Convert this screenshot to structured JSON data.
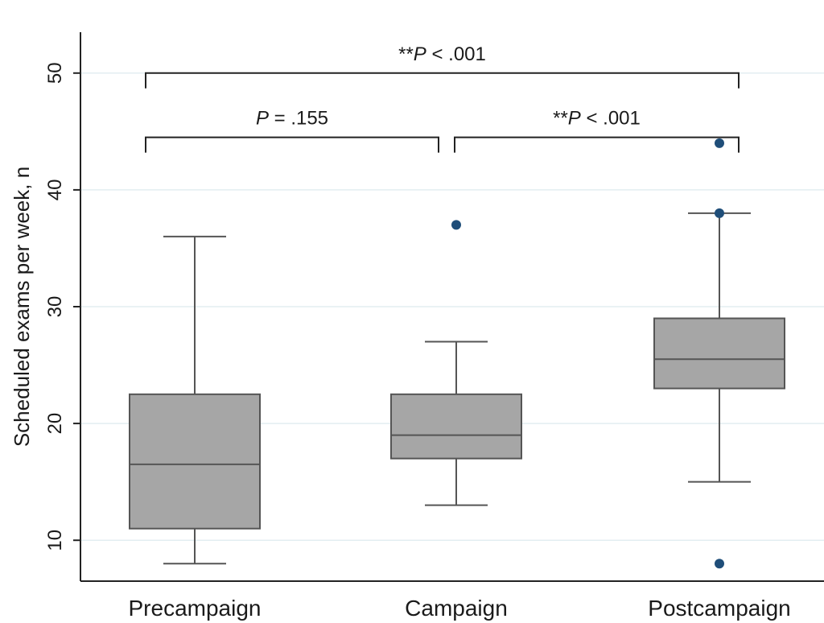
{
  "chart_data": {
    "type": "boxplot",
    "ylabel": "Scheduled exams per week, n",
    "xlabel": "",
    "ylim": [
      6.5,
      53.5
    ],
    "yticks": [
      10,
      20,
      30,
      40,
      50
    ],
    "grid": true,
    "categories": [
      "Precampaign",
      "Campaign",
      "Postcampaign"
    ],
    "boxes": [
      {
        "category": "Precampaign",
        "whisker_low": 8,
        "q1": 11,
        "median": 16.5,
        "q3": 22.5,
        "whisker_high": 36,
        "outliers": []
      },
      {
        "category": "Campaign",
        "whisker_low": 13,
        "q1": 17,
        "median": 19,
        "q3": 22.5,
        "whisker_high": 27,
        "outliers": [
          37
        ]
      },
      {
        "category": "Postcampaign",
        "whisker_low": 15,
        "q1": 23,
        "median": 25.5,
        "q3": 29,
        "whisker_high": 38,
        "outliers": [
          44,
          38,
          8
        ]
      }
    ],
    "annotations": [
      {
        "from": "Precampaign",
        "to": "Postcampaign",
        "level": 50,
        "prefix": "**",
        "p_text": "P",
        "rest": " < .001"
      },
      {
        "from": "Precampaign",
        "to": "Campaign",
        "level": 44.5,
        "prefix": "",
        "p_text": "P",
        "rest": " = .155"
      },
      {
        "from": "Campaign",
        "to": "Postcampaign",
        "level": 44.5,
        "prefix": "**",
        "p_text": "P",
        "rest": " < .001"
      }
    ],
    "colors": {
      "box_fill": "#a6a6a6",
      "box_stroke": "#555555",
      "outlier": "#1f4e79",
      "grid": "#e3eef1",
      "axis": "#222222"
    }
  }
}
